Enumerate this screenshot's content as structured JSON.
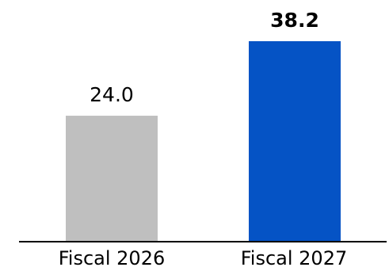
{
  "chart_data": {
    "type": "bar",
    "title": "",
    "xlabel": "",
    "ylabel": "",
    "categories": [
      "Fiscal 2026",
      "Fiscal 2027"
    ],
    "values": [
      24.0,
      38.2
    ],
    "value_labels": [
      "24.0",
      "38.2"
    ],
    "emphasized_value_index": 1,
    "colors": [
      "#bfbfbf",
      "#0553c5"
    ],
    "axis_color": "#000000",
    "ylim": [
      0,
      38.2
    ],
    "grid": false,
    "legend": "none"
  }
}
